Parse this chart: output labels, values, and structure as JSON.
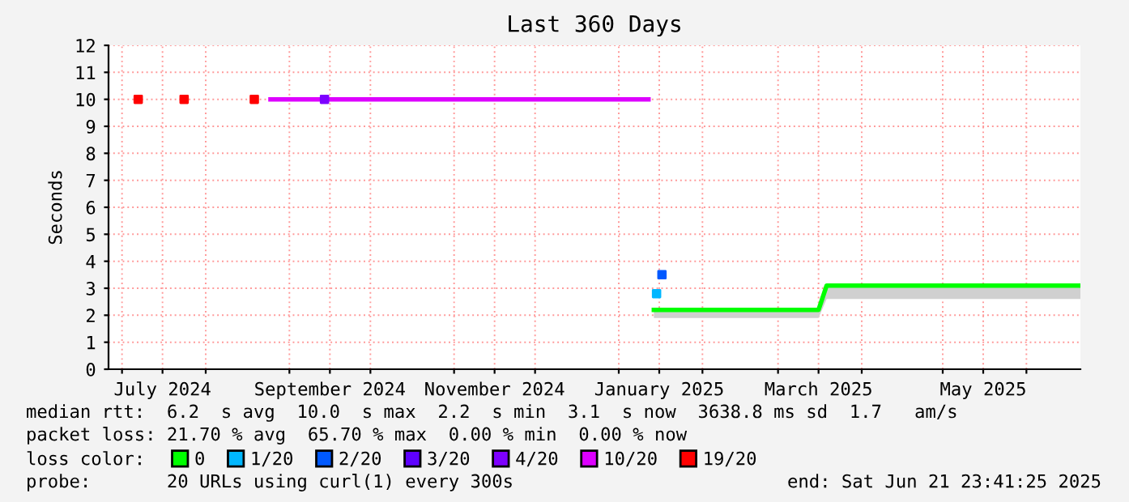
{
  "chart_data": {
    "type": "line",
    "title": "Last 360 Days",
    "ylabel": "Seconds",
    "xlim": [
      "2024-06-26",
      "2025-06-21"
    ],
    "xticks": [
      {
        "value": "2024-07-01",
        "label": null
      },
      {
        "value": "2024-07-16",
        "label": "July 2024"
      },
      {
        "value": "2024-08-01",
        "label": null
      },
      {
        "value": "2024-09-01",
        "label": null
      },
      {
        "value": "2024-09-16",
        "label": "September 2024"
      },
      {
        "value": "2024-10-01",
        "label": null
      },
      {
        "value": "2024-11-01",
        "label": null
      },
      {
        "value": "2024-11-16",
        "label": "November 2024"
      },
      {
        "value": "2024-12-01",
        "label": null
      },
      {
        "value": "2025-01-01",
        "label": null
      },
      {
        "value": "2025-01-16",
        "label": "January 2025"
      },
      {
        "value": "2025-02-01",
        "label": null
      },
      {
        "value": "2025-03-01",
        "label": null
      },
      {
        "value": "2025-03-16",
        "label": "March 2025"
      },
      {
        "value": "2025-04-01",
        "label": null
      },
      {
        "value": "2025-05-01",
        "label": null
      },
      {
        "value": "2025-05-16",
        "label": "May 2025"
      },
      {
        "value": "2025-06-01",
        "label": null
      }
    ],
    "ylim": [
      0,
      12
    ],
    "yticks": [
      0,
      1,
      2,
      3,
      4,
      5,
      6,
      7,
      8,
      9,
      10,
      11,
      12
    ],
    "grid": true,
    "legend": "bottom",
    "series": [
      {
        "name": "0",
        "color": "#00ff00",
        "x": [
          "2025-01-14",
          "2025-03-16",
          "2025-03-19",
          "2025-06-21"
        ],
        "values": [
          2.2,
          2.2,
          3.1,
          3.1
        ],
        "lower": [
          1.9,
          1.9,
          2.6,
          2.6
        ],
        "upper": [
          2.2,
          2.2,
          3.1,
          3.1
        ]
      },
      {
        "name": "1/20",
        "color": "#00b7ff",
        "type": "scatter",
        "x": [
          "2025-01-15"
        ],
        "values": [
          2.8
        ]
      },
      {
        "name": "2/20",
        "color": "#0059ff",
        "type": "scatter",
        "x": [
          "2025-01-17"
        ],
        "values": [
          3.5
        ]
      },
      {
        "name": "3/20",
        "color": "#5e00ff",
        "type": "scatter"
      },
      {
        "name": "4/20",
        "color": "#7e00ff",
        "type": "scatter",
        "x": [
          "2024-09-14"
        ],
        "values": [
          10
        ]
      },
      {
        "name": "10/20",
        "color": "#dd00ff",
        "x": [
          "2024-08-25",
          "2025-01-12"
        ],
        "values": [
          10,
          10
        ]
      },
      {
        "name": "19/20",
        "color": "#ff0000",
        "type": "scatter",
        "x": [
          "2024-07-07",
          "2024-07-24",
          "2024-08-19"
        ],
        "values": [
          10,
          10,
          10
        ]
      }
    ],
    "annotations": [
      "median rtt:  6.2  s avg  10.0  s max  2.2  s min  3.1  s now  3638.8 ms sd  1.7   am/s",
      "packet loss: 21.70 % avg  65.70 % max  0.00 % min  0.00 % now",
      "loss color:",
      "probe:       20 URLs using curl(1) every 300s",
      "end: Sat Jun 21 23:41:25 2025"
    ]
  }
}
